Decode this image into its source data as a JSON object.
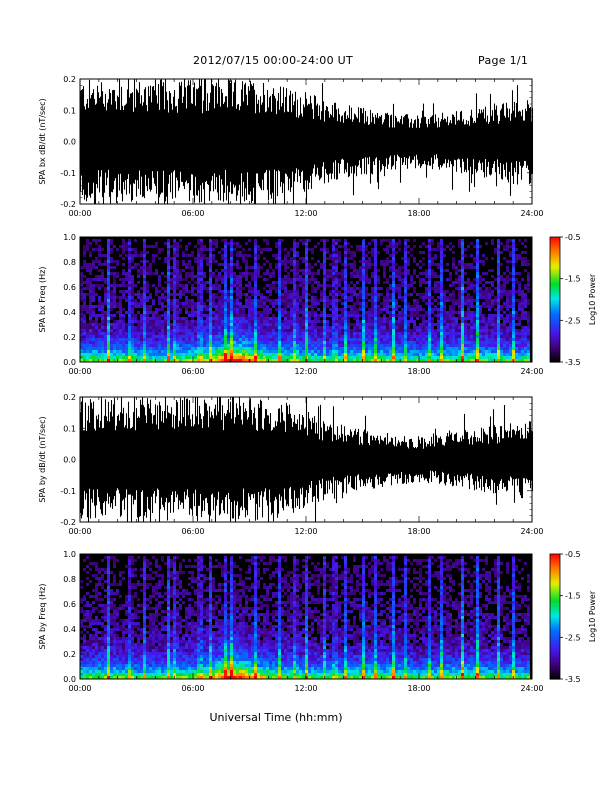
{
  "header": {
    "title": "2012/07/15  00:00-24:00 UT",
    "page": "Page 1/1"
  },
  "xaxis_title": "Universal Time (hh:mm)",
  "chart_data": [
    {
      "type": "line",
      "ylabel": "SPA bx dB/dt (nT/sec)",
      "xlim": [
        "00:00",
        "24:00"
      ],
      "ylim": [
        -0.2,
        0.2
      ],
      "x_ticks": [
        "00:00",
        "06:00",
        "12:00",
        "18:00",
        "24:00"
      ],
      "y_ticks": [
        "0.2",
        "0.1",
        "0.0",
        "-0.1",
        "-0.2"
      ],
      "envelope": {
        "x_hours": [
          0,
          1,
          2,
          3,
          4,
          5,
          6,
          7,
          7.8,
          8.5,
          9.5,
          10.2,
          11,
          12,
          13,
          14,
          15,
          16,
          17,
          18,
          19,
          20,
          21,
          22,
          23,
          24
        ],
        "amplitude": [
          0.2,
          0.2,
          0.2,
          0.2,
          0.2,
          0.2,
          0.2,
          0.2,
          0.2,
          0.2,
          0.2,
          0.2,
          0.17,
          0.16,
          0.14,
          0.12,
          0.11,
          0.1,
          0.09,
          0.085,
          0.09,
          0.1,
          0.11,
          0.12,
          0.13,
          0.14
        ]
      }
    },
    {
      "type": "heatmap",
      "ylabel": "SPA bx Freq (Hz)",
      "xlim": [
        "00:00",
        "24:00"
      ],
      "ylim": [
        0.0,
        1.0
      ],
      "x_ticks": [
        "00:00",
        "06:00",
        "12:00",
        "18:00",
        "24:00"
      ],
      "y_ticks": [
        "1.0",
        "0.8",
        "0.6",
        "0.4",
        "0.2",
        "0.0"
      ],
      "colorbar": {
        "label": "Log10 Power",
        "ticks": [
          "-0.5",
          "-1.5",
          "-2.5",
          "-3.5"
        ],
        "range": [
          -3.5,
          -0.5
        ]
      },
      "bright_stripes_hours": [
        1.5,
        2.7,
        3.4,
        4.7,
        5.1,
        6.4,
        7.0,
        7.8,
        8.1,
        9.4,
        10.6,
        11.5,
        12.1,
        13.0,
        13.6,
        14.2,
        15.1,
        15.8,
        16.7,
        17.4,
        18.6,
        19.3,
        20.4,
        21.2,
        22.3,
        23.1
      ]
    },
    {
      "type": "line",
      "ylabel": "SPA by dB/dt (nT/sec)",
      "xlim": [
        "00:00",
        "24:00"
      ],
      "ylim": [
        -0.2,
        0.2
      ],
      "x_ticks": [
        "00:00",
        "06:00",
        "12:00",
        "18:00",
        "24:00"
      ],
      "y_ticks": [
        "0.2",
        "0.1",
        "0.0",
        "-0.1",
        "-0.2"
      ],
      "envelope": {
        "x_hours": [
          0,
          1,
          2,
          3,
          4,
          5,
          6,
          7,
          7.8,
          8.5,
          9.5,
          10.2,
          11,
          12,
          13,
          14,
          15,
          16,
          17,
          18,
          19,
          20,
          21,
          22,
          23,
          24
        ],
        "amplitude": [
          0.2,
          0.2,
          0.2,
          0.2,
          0.2,
          0.2,
          0.2,
          0.2,
          0.2,
          0.2,
          0.2,
          0.2,
          0.18,
          0.16,
          0.13,
          0.11,
          0.1,
          0.09,
          0.08,
          0.075,
          0.08,
          0.09,
          0.1,
          0.11,
          0.12,
          0.13
        ]
      }
    },
    {
      "type": "heatmap",
      "ylabel": "SPA by Freq (Hz)",
      "xlim": [
        "00:00",
        "24:00"
      ],
      "ylim": [
        0.0,
        1.0
      ],
      "x_ticks": [
        "00:00",
        "06:00",
        "12:00",
        "18:00",
        "24:00"
      ],
      "y_ticks": [
        "1.0",
        "0.8",
        "0.6",
        "0.4",
        "0.2",
        "0.0"
      ],
      "colorbar": {
        "label": "Log10 Power",
        "ticks": [
          "-0.5",
          "-1.5",
          "-2.5",
          "-3.5"
        ],
        "range": [
          -3.5,
          -0.5
        ]
      },
      "bright_stripes_hours": [
        1.5,
        2.7,
        3.4,
        4.7,
        5.1,
        6.4,
        7.0,
        7.8,
        8.1,
        9.4,
        10.6,
        11.5,
        12.1,
        13.0,
        13.6,
        14.2,
        15.1,
        15.8,
        16.7,
        17.4,
        18.6,
        19.3,
        20.4,
        21.2,
        22.3,
        23.1
      ]
    }
  ]
}
